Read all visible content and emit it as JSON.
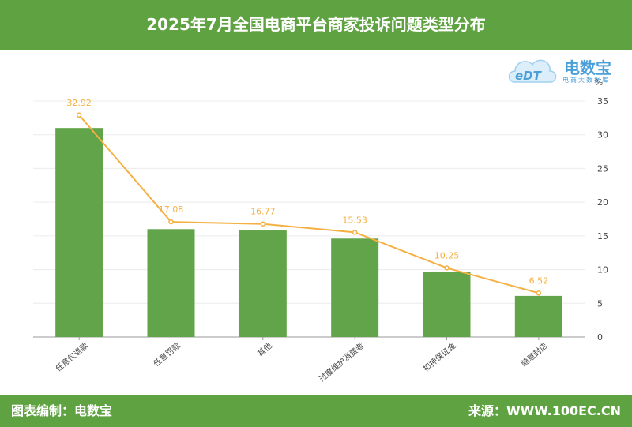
{
  "header": {
    "title": "2025年7月全国电商平台商家投诉问题类型分布"
  },
  "footer": {
    "source_left": "图表编制：电数宝",
    "source_right": "来源：WWW.100EC.CN"
  },
  "logo": {
    "name": "电数宝",
    "tagline": "电商大数据库",
    "mark": "eDT"
  },
  "colors": {
    "bar": "#62a449",
    "line": "#f5b041",
    "brand": "#5fa241"
  },
  "chart_data": {
    "type": "bar",
    "categories": [
      "任意仅退款",
      "任意罚款",
      "其他",
      "过度维护消费者",
      "扣押保证金",
      "随意封店"
    ],
    "series": [
      {
        "type": "bar",
        "values": [
          31,
          16,
          15.8,
          14.6,
          9.6,
          6.1
        ]
      },
      {
        "type": "line",
        "values": [
          32.92,
          17.08,
          16.77,
          15.53,
          10.25,
          6.52
        ],
        "labels": [
          "32.92",
          "17.08",
          "16.77",
          "15.53",
          "10.25",
          "6.52"
        ]
      }
    ],
    "y_axis": {
      "position": "right",
      "unit": "%",
      "ylim": [
        0,
        35
      ],
      "ticks": [
        "0",
        "5",
        "10",
        "15",
        "20",
        "25",
        "30",
        "35"
      ]
    },
    "grid": true,
    "legend": "none"
  }
}
